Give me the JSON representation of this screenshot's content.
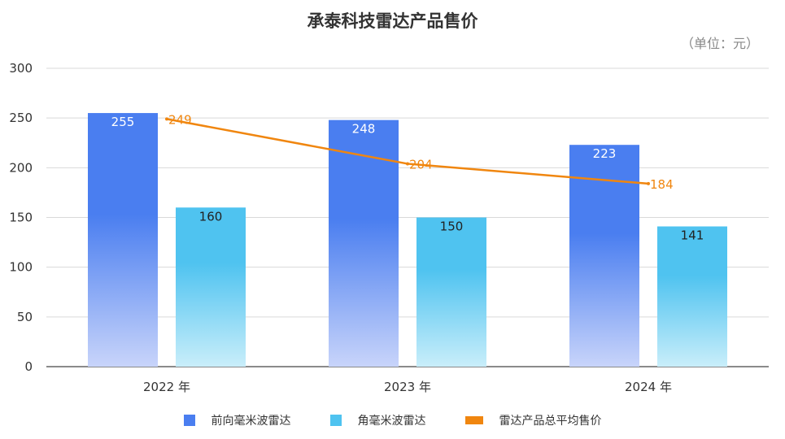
{
  "chart_data": {
    "type": "bar",
    "title": "承泰科技雷达产品售价",
    "unit": "（单位：元）",
    "categories": [
      "2022 年",
      "2023 年",
      "2024 年"
    ],
    "ylim": [
      0,
      300
    ],
    "yticks": [
      0,
      50,
      100,
      150,
      200,
      250,
      300
    ],
    "grid": true,
    "legend_position": "bottom",
    "series": [
      {
        "name": "前向毫米波雷达",
        "type": "bar",
        "values": [
          255,
          248,
          223
        ],
        "color": "#4a7ef0",
        "color_light": "#c8d4fa",
        "label_color": "#ffffff"
      },
      {
        "name": "角毫米波雷达",
        "type": "bar",
        "values": [
          160,
          150,
          141
        ],
        "color": "#4fc3f0",
        "color_light": "#c9eefa",
        "label_color": "#222222"
      },
      {
        "name": "雷达产品总平均售价",
        "type": "line",
        "values": [
          249,
          204,
          184
        ],
        "color": "#f0860f",
        "label_color": "#f0860f"
      }
    ]
  }
}
